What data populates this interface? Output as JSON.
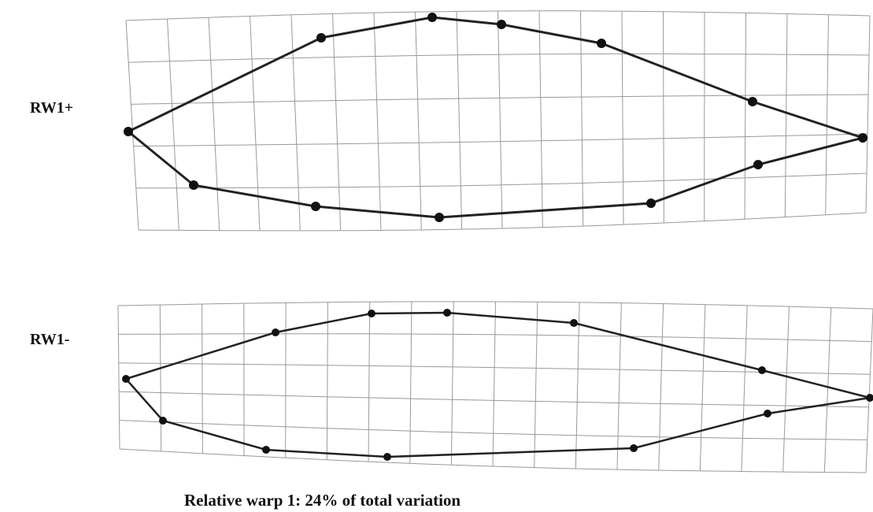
{
  "panels": [
    {
      "label": "RW1+"
    },
    {
      "label": "RW1-"
    }
  ],
  "caption": "Relative warp 1: 24% of total variation"
}
